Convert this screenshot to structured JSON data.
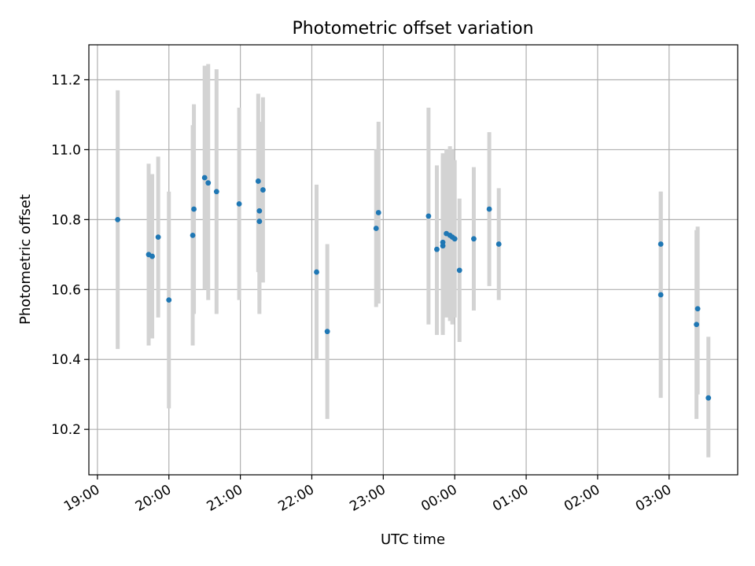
{
  "chart_data": {
    "type": "scatter",
    "title": "Photometric offset variation",
    "xlabel": "UTC time",
    "ylabel": "Photometric offset",
    "grid": true,
    "x_ticks": [
      "19:00",
      "20:00",
      "21:00",
      "22:00",
      "23:00",
      "00:00",
      "01:00",
      "02:00",
      "03:00"
    ],
    "y_ticks": [
      "10.2",
      "10.4",
      "10.6",
      "10.8",
      "11.0",
      "11.2"
    ],
    "ylim": [
      10.07,
      11.3
    ],
    "xlim_hours": [
      18.88,
      27.96
    ],
    "point_color": "#1f77b4",
    "errorbar_color": "#d3d3d3",
    "points": [
      {
        "t": "19:17",
        "y": 10.8,
        "lo": 10.43,
        "hi": 11.17
      },
      {
        "t": "19:43",
        "y": 10.7,
        "lo": 10.44,
        "hi": 10.96
      },
      {
        "t": "19:46",
        "y": 10.695,
        "lo": 10.46,
        "hi": 10.93
      },
      {
        "t": "19:51",
        "y": 10.75,
        "lo": 10.52,
        "hi": 10.98
      },
      {
        "t": "20:00",
        "y": 10.57,
        "lo": 10.26,
        "hi": 10.88
      },
      {
        "t": "20:20",
        "y": 10.755,
        "lo": 10.44,
        "hi": 11.07
      },
      {
        "t": "20:21",
        "y": 10.83,
        "lo": 10.53,
        "hi": 11.13
      },
      {
        "t": "20:30",
        "y": 10.92,
        "lo": 10.6,
        "hi": 11.24
      },
      {
        "t": "20:33",
        "y": 10.905,
        "lo": 10.57,
        "hi": 11.245
      },
      {
        "t": "20:40",
        "y": 10.88,
        "lo": 10.53,
        "hi": 11.23
      },
      {
        "t": "20:59",
        "y": 10.845,
        "lo": 10.57,
        "hi": 11.12
      },
      {
        "t": "21:15",
        "y": 10.91,
        "lo": 10.65,
        "hi": 11.16
      },
      {
        "t": "21:16",
        "y": 10.795,
        "lo": 10.53,
        "hi": 11.06
      },
      {
        "t": "21:16",
        "y": 10.825,
        "lo": 10.57,
        "hi": 11.08
      },
      {
        "t": "21:19",
        "y": 10.885,
        "lo": 10.62,
        "hi": 11.15
      },
      {
        "t": "22:04",
        "y": 10.65,
        "lo": 10.4,
        "hi": 10.9
      },
      {
        "t": "22:13",
        "y": 10.48,
        "lo": 10.23,
        "hi": 10.73
      },
      {
        "t": "22:54",
        "y": 10.775,
        "lo": 10.55,
        "hi": 11.0
      },
      {
        "t": "22:56",
        "y": 10.82,
        "lo": 10.56,
        "hi": 11.08
      },
      {
        "t": "23:38",
        "y": 10.81,
        "lo": 10.5,
        "hi": 11.12
      },
      {
        "t": "23:45",
        "y": 10.715,
        "lo": 10.47,
        "hi": 10.955
      },
      {
        "t": "23:50",
        "y": 10.735,
        "lo": 10.48,
        "hi": 10.99
      },
      {
        "t": "23:50",
        "y": 10.725,
        "lo": 10.47,
        "hi": 10.98
      },
      {
        "t": "23:53",
        "y": 10.76,
        "lo": 10.52,
        "hi": 11.0
      },
      {
        "t": "23:56",
        "y": 10.755,
        "lo": 10.51,
        "hi": 11.01
      },
      {
        "t": "23:58",
        "y": 10.75,
        "lo": 10.5,
        "hi": 11.0
      },
      {
        "t": "00:00",
        "y": 10.745,
        "lo": 10.52,
        "hi": 10.97
      },
      {
        "t": "00:04",
        "y": 10.655,
        "lo": 10.45,
        "hi": 10.86
      },
      {
        "t": "00:16",
        "y": 10.745,
        "lo": 10.54,
        "hi": 10.95
      },
      {
        "t": "00:29",
        "y": 10.83,
        "lo": 10.61,
        "hi": 11.05
      },
      {
        "t": "00:37",
        "y": 10.73,
        "lo": 10.57,
        "hi": 10.89
      },
      {
        "t": "02:53",
        "y": 10.73,
        "lo": 10.58,
        "hi": 10.88
      },
      {
        "t": "02:53",
        "y": 10.585,
        "lo": 10.29,
        "hi": 10.88
      },
      {
        "t": "03:23",
        "y": 10.5,
        "lo": 10.23,
        "hi": 10.77
      },
      {
        "t": "03:24",
        "y": 10.545,
        "lo": 10.3,
        "hi": 10.78
      },
      {
        "t": "03:33",
        "y": 10.29,
        "lo": 10.12,
        "hi": 10.465
      }
    ]
  }
}
